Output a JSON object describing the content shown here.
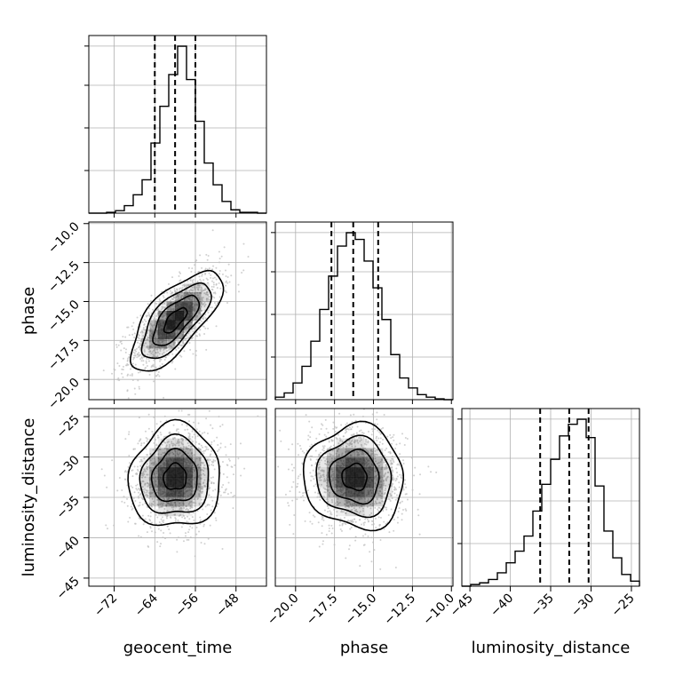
{
  "chart_data": {
    "type": "corner",
    "parameters": [
      "geocent_time",
      "phase",
      "luminosity_distance"
    ],
    "axis_labels": {
      "x": [
        "geocent_time",
        "phase",
        "luminosity_distance"
      ],
      "y": [
        "",
        "phase",
        "luminosity_distance"
      ]
    },
    "ranges": {
      "geocent_time": [
        -77,
        -42
      ],
      "phase": [
        -21.3,
        -9.9
      ],
      "luminosity_distance": [
        -46,
        -24
      ]
    },
    "ticks": {
      "geocent_time": {
        "values": [
          -72,
          -64,
          -56,
          -48
        ],
        "labels": [
          "−72",
          "−64",
          "−56",
          "−48"
        ]
      },
      "phase": {
        "values": [
          -20.0,
          -17.5,
          -15.0,
          -12.5,
          -10.0
        ],
        "labels": [
          "−20.0",
          "−17.5",
          "−15.0",
          "−12.5",
          "−10.0"
        ]
      },
      "luminosity_distance": {
        "values": [
          -45,
          -40,
          -35,
          -30,
          -25
        ],
        "labels": [
          "−45",
          "−40",
          "−35",
          "−30",
          "−25"
        ]
      }
    },
    "quantiles": {
      "geocent_time": [
        -64.0,
        -60.0,
        -56.0
      ],
      "phase": [
        -17.7,
        -16.3,
        -14.7
      ],
      "luminosity_distance": [
        -36.3,
        -32.7,
        -30.3
      ]
    },
    "histograms": {
      "geocent_time": {
        "bin_edges": [
          -77,
          -75.25,
          -73.5,
          -71.75,
          -70,
          -68.25,
          -66.5,
          -64.75,
          -63,
          -61.25,
          -59.5,
          -57.75,
          -56,
          -54.25,
          -52.5,
          -50.75,
          -49,
          -47.25,
          -45.5,
          -43.75,
          -42
        ],
        "counts": [
          0,
          0,
          0.005,
          0.015,
          0.045,
          0.11,
          0.2,
          0.42,
          0.64,
          0.83,
          1.0,
          0.8,
          0.55,
          0.3,
          0.17,
          0.07,
          0.02,
          0.005,
          0.005,
          0
        ]
      },
      "phase": {
        "bin_edges": [
          -21.3,
          -20.73,
          -20.16,
          -19.59,
          -19.02,
          -18.45,
          -17.88,
          -17.31,
          -16.74,
          -16.17,
          -15.6,
          -15.03,
          -14.46,
          -13.89,
          -13.32,
          -12.75,
          -12.18,
          -11.61,
          -11.04,
          -10.47,
          -9.9
        ],
        "counts": [
          0.015,
          0.04,
          0.1,
          0.2,
          0.35,
          0.54,
          0.74,
          0.92,
          1.0,
          0.96,
          0.83,
          0.67,
          0.48,
          0.27,
          0.13,
          0.07,
          0.03,
          0.015,
          0.005,
          0
        ]
      },
      "luminosity_distance": {
        "bin_edges": [
          -46,
          -44.9,
          -43.8,
          -42.7,
          -41.6,
          -40.5,
          -39.4,
          -38.3,
          -37.2,
          -36.1,
          -35,
          -33.9,
          -32.8,
          -31.7,
          -30.6,
          -29.5,
          -28.4,
          -27.3,
          -26.2,
          -25.1,
          -24
        ],
        "counts": [
          0,
          0.01,
          0.02,
          0.04,
          0.08,
          0.14,
          0.21,
          0.3,
          0.45,
          0.61,
          0.76,
          0.9,
          0.97,
          1.0,
          0.89,
          0.6,
          0.33,
          0.17,
          0.07,
          0.03
        ]
      }
    },
    "distribution": {
      "mean": {
        "geocent_time": -60,
        "phase": -16.2,
        "luminosity_distance": -32.5
      },
      "sd": {
        "geocent_time": 4.5,
        "phase": 1.6,
        "luminosity_distance": 3.2
      },
      "correlation": {
        "geocent_time_phase": 0.7,
        "geocent_time_luminosity_distance": 0.05,
        "phase_luminosity_distance": -0.05
      }
    },
    "contour_levels_sigma": [
      0.5,
      1.0,
      1.5,
      2.0
    ],
    "grid": true,
    "colors": {
      "line": "#000000",
      "grid": "#b0b0b0",
      "scatter": "#bdbdbd",
      "density": "#000000"
    }
  }
}
